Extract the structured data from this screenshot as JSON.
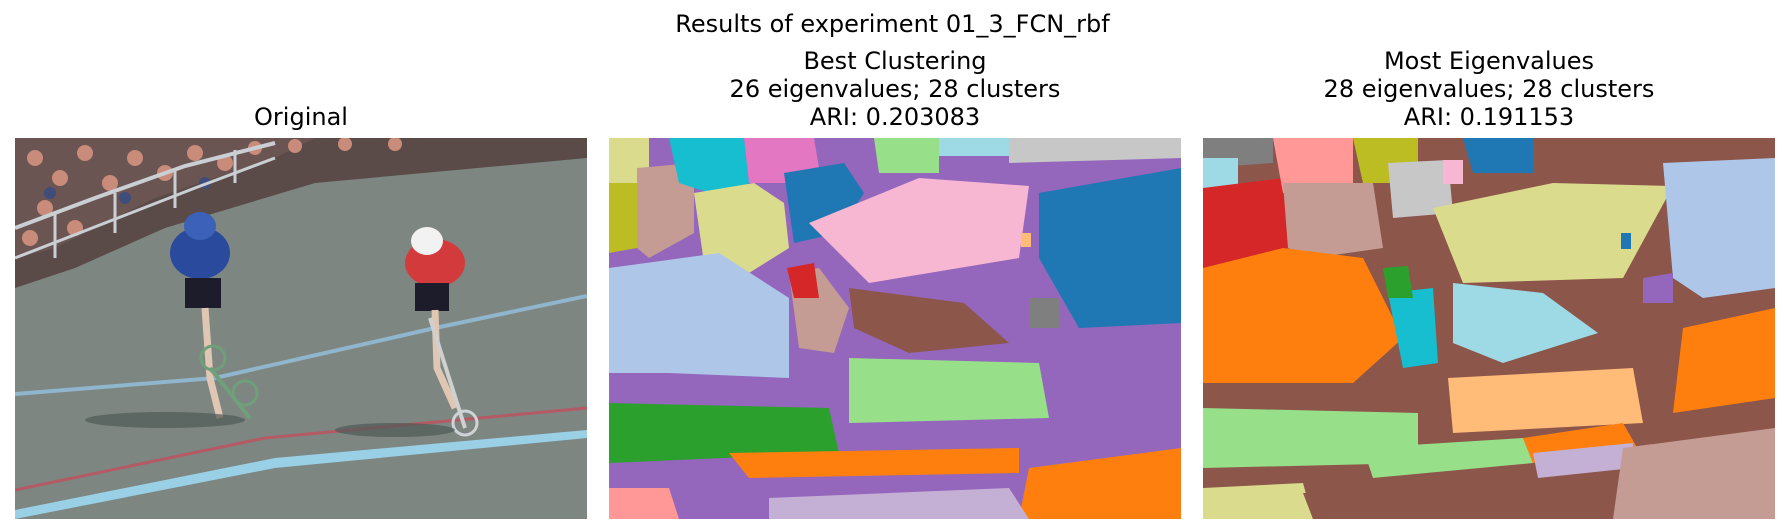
{
  "figure": {
    "suptitle": "Results of experiment 01_3_FCN_rbf"
  },
  "panels": [
    {
      "id": "original",
      "title_lines": [
        "Original"
      ]
    },
    {
      "id": "best-clustering",
      "title_lines": [
        "Best Clustering",
        "26 eigenvalues; 28 clusters",
        "ARI: 0.203083"
      ]
    },
    {
      "id": "most-eigenvalues",
      "title_lines": [
        "Most Eigenvalues",
        "28 eigenvalues; 28 clusters",
        "ARI: 0.191153"
      ]
    }
  ]
}
